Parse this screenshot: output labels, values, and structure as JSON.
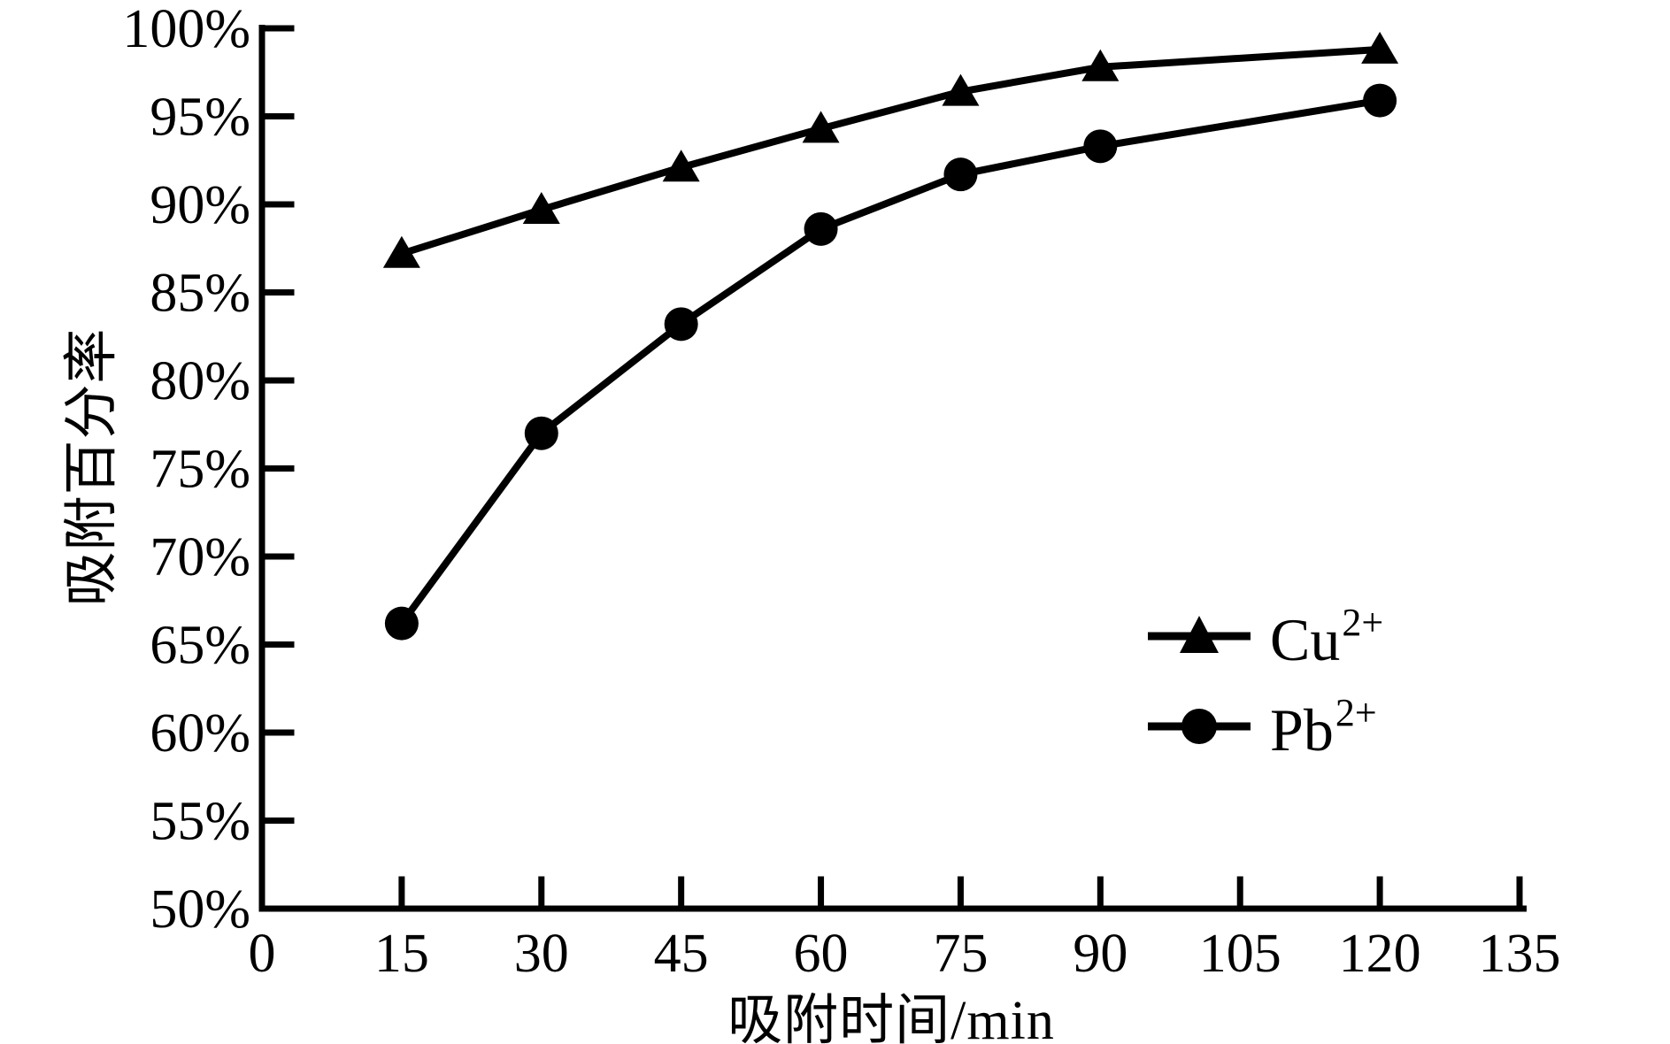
{
  "figure": {
    "background": "#ffffff",
    "axis_color": "#000000"
  },
  "chart_data": {
    "type": "line",
    "title": "",
    "xlabel": "吸附时间/min",
    "ylabel": "吸附百分率",
    "x": [
      15,
      30,
      45,
      60,
      75,
      90,
      120
    ],
    "series": [
      {
        "name": "Cu2+",
        "label_base": "Cu",
        "label_sup": "2+",
        "marker": "triangle",
        "color": "#000000",
        "values": [
          87.2,
          89.7,
          92.1,
          94.3,
          96.4,
          97.8,
          98.8
        ]
      },
      {
        "name": "Pb2+",
        "label_base": "Pb",
        "label_sup": "2+",
        "marker": "circle",
        "color": "#000000",
        "values": [
          66.2,
          77.0,
          83.2,
          88.6,
          91.7,
          93.3,
          95.9
        ]
      }
    ],
    "x_ticks": [
      0,
      15,
      30,
      45,
      60,
      75,
      90,
      105,
      120,
      135
    ],
    "x_tick_labels": [
      "0",
      "15",
      "30",
      "45",
      "60",
      "75",
      "90",
      "105",
      "120",
      "135"
    ],
    "y_ticks": [
      50,
      55,
      60,
      65,
      70,
      75,
      80,
      85,
      90,
      95,
      100
    ],
    "y_tick_labels": [
      "50%",
      "55%",
      "60%",
      "65%",
      "70%",
      "75%",
      "80%",
      "85%",
      "90%",
      "95%",
      "100%"
    ],
    "y_tick_suffix": "%",
    "xlim": [
      0,
      135
    ],
    "ylim": [
      50,
      100
    ],
    "grid": false,
    "legend_position": "right-center",
    "line_color": "#000000"
  }
}
